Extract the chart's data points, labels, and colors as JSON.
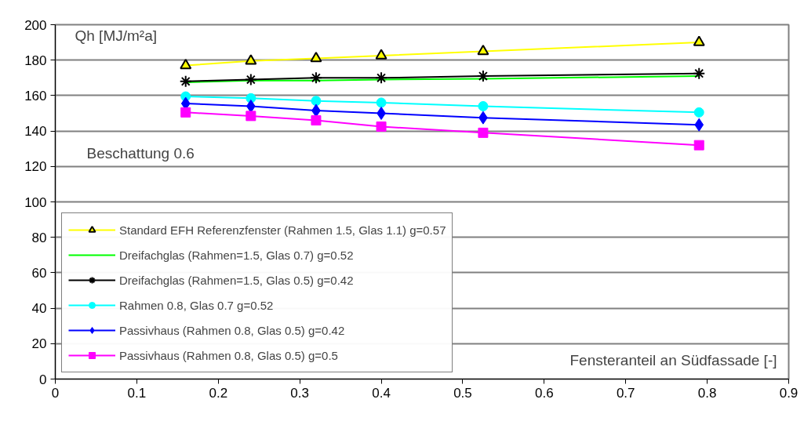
{
  "chart_data": {
    "type": "line",
    "ylabel": "Qh [MJ/m²a]",
    "xlabel": "Fensteranteil an Südfassade [-]",
    "annotations": [
      "Beschattung 0.6"
    ],
    "x": [
      0.16,
      0.24,
      0.32,
      0.4,
      0.525,
      0.79
    ],
    "xlim": [
      0,
      0.9
    ],
    "xticks": [
      0,
      0.1,
      0.2,
      0.3,
      0.4,
      0.5,
      0.6,
      0.7,
      0.8,
      0.9
    ],
    "ylim": [
      0,
      200
    ],
    "yticks": [
      0,
      20,
      40,
      60,
      80,
      100,
      120,
      140,
      160,
      180,
      200
    ],
    "grid": "y",
    "legend": "bottom left",
    "series": [
      {
        "name": "Standard EFH Referenzfenster (Rahmen 1.5, Glas 1.1) g=0.57",
        "color": "#ffff00",
        "marker": "triangle",
        "values": [
          177,
          179.5,
          181,
          182.5,
          185,
          190
        ]
      },
      {
        "name": "Dreifachglas (Rahmen=1.5, Glas 0.7) g=0.52",
        "color": "#00ff00",
        "marker": "none",
        "values": [
          167.5,
          168.5,
          168.5,
          169,
          169.5,
          171
        ]
      },
      {
        "name": "Dreifachglas (Rahmen=1.5, Glas 0.5) g=0.42",
        "color": "#000000",
        "marker": "cross",
        "values": [
          168,
          169,
          170,
          170,
          171,
          172.5
        ]
      },
      {
        "name": "Rahmen 0.8, Glas 0.7 g=0.52",
        "color": "#00ffff",
        "marker": "circle",
        "values": [
          159.5,
          158.5,
          157,
          156,
          154,
          150.5
        ]
      },
      {
        "name": "Passivhaus (Rahmen 0.8, Glas 0.5) g=0.42",
        "color": "#0000ff",
        "marker": "diamond",
        "values": [
          155.5,
          154,
          151.5,
          150,
          147.5,
          143.5
        ]
      },
      {
        "name": "Passivhaus (Rahmen 0.8, Glas 0.5) g=0.5",
        "color": "#ff00ff",
        "marker": "square",
        "values": [
          150.5,
          148.5,
          146,
          142.5,
          139,
          132
        ]
      }
    ]
  }
}
